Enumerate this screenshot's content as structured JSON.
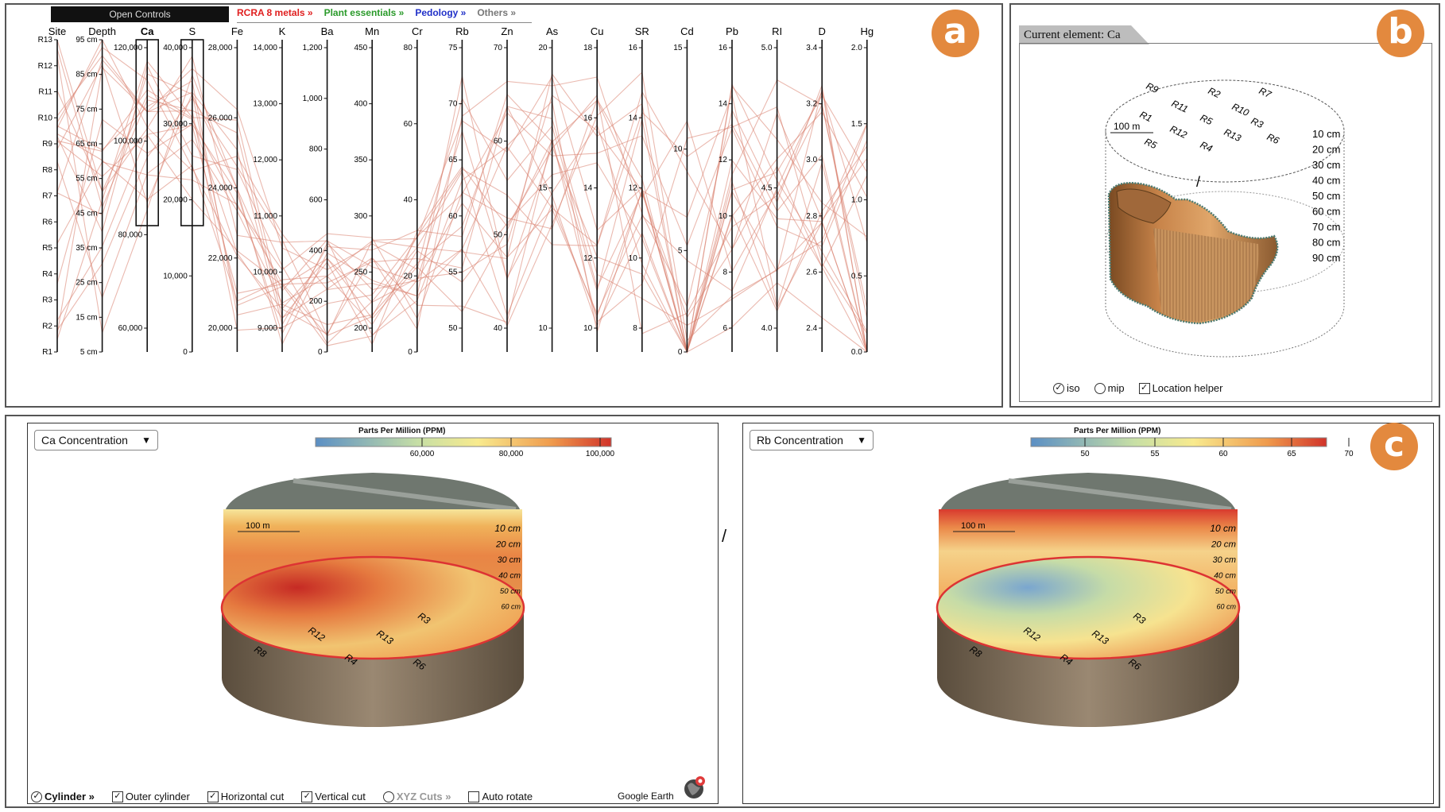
{
  "panel_a": {
    "badge": "a",
    "open_controls": "Open Controls",
    "categories": [
      {
        "label": "RCRA 8 metals »",
        "color": "#e02020"
      },
      {
        "label": "Plant essentials »",
        "color": "#2a9a2a"
      },
      {
        "label": "Pedology »",
        "color": "#2030c8"
      },
      {
        "label": "Others »",
        "color": "#777777"
      }
    ],
    "axes": [
      {
        "name": "Site",
        "ticks": [
          "R13",
          "R12",
          "R11",
          "R10",
          "R9",
          "R8",
          "R7",
          "R6",
          "R5",
          "R4",
          "R3",
          "R2",
          "R1"
        ]
      },
      {
        "name": "Depth",
        "ticks": [
          "95 cm",
          "85 cm",
          "75 cm",
          "65 cm",
          "55 cm",
          "45 cm",
          "35 cm",
          "25 cm",
          "15 cm",
          "5 cm"
        ]
      },
      {
        "name": "Ca",
        "ticks": [
          "120,000",
          "100,000",
          "80,000",
          "60,000"
        ],
        "bold": true
      },
      {
        "name": "S",
        "ticks": [
          "40,000",
          "30,000",
          "20,000",
          "10,000",
          "0"
        ]
      },
      {
        "name": "Fe",
        "ticks": [
          "28,000",
          "26,000",
          "24,000",
          "22,000",
          "20,000"
        ]
      },
      {
        "name": "K",
        "ticks": [
          "14,000",
          "13,000",
          "12,000",
          "11,000",
          "10,000",
          "9,000"
        ]
      },
      {
        "name": "Ba",
        "ticks": [
          "1,200",
          "1,000",
          "800",
          "600",
          "400",
          "200",
          "0"
        ]
      },
      {
        "name": "Mn",
        "ticks": [
          "450",
          "400",
          "350",
          "300",
          "250",
          "200"
        ]
      },
      {
        "name": "Cr",
        "ticks": [
          "80",
          "60",
          "40",
          "20",
          "0"
        ]
      },
      {
        "name": "Rb",
        "ticks": [
          "75",
          "70",
          "65",
          "60",
          "55",
          "50"
        ]
      },
      {
        "name": "Zn",
        "ticks": [
          "70",
          "60",
          "50",
          "40"
        ]
      },
      {
        "name": "As",
        "ticks": [
          "20",
          "15",
          "10"
        ]
      },
      {
        "name": "Cu",
        "ticks": [
          "18",
          "16",
          "14",
          "12",
          "10"
        ]
      },
      {
        "name": "SR",
        "ticks": [
          "16",
          "14",
          "12",
          "10",
          "8"
        ]
      },
      {
        "name": "Cd",
        "ticks": [
          "15",
          "10",
          "5",
          "0"
        ]
      },
      {
        "name": "Pb",
        "ticks": [
          "16",
          "14",
          "12",
          "10",
          "8",
          "6"
        ]
      },
      {
        "name": "RI",
        "ticks": [
          "5.0",
          "4.5",
          "4.0"
        ]
      },
      {
        "name": "D",
        "ticks": [
          "3.4",
          "3.2",
          "3.0",
          "2.8",
          "2.6",
          "2.4"
        ]
      },
      {
        "name": "Hg",
        "ticks": [
          "2.0",
          "1.5",
          "1.0",
          "0.5",
          "0.0"
        ]
      }
    ],
    "line_color": "#d8806e"
  },
  "panel_b": {
    "badge": "b",
    "current_element_label": "Current element:",
    "current_element": "Ca",
    "site_labels": [
      "R9",
      "R2",
      "R7",
      "R11",
      "R10",
      "R1",
      "R5",
      "R3",
      "R12",
      "R13",
      "R6",
      "R5",
      "R4"
    ],
    "scale_label": "100 m",
    "depth_labels": [
      "10 cm",
      "20 cm",
      "30 cm",
      "40 cm",
      "50 cm",
      "60 cm",
      "70 cm",
      "80 cm",
      "90 cm"
    ],
    "options": [
      {
        "type": "radio",
        "label": "iso",
        "checked": true
      },
      {
        "type": "radio",
        "label": "mip",
        "checked": false
      },
      {
        "type": "check",
        "label": "Location helper",
        "checked": true
      }
    ]
  },
  "panel_c": {
    "badge": "c",
    "left_map": {
      "select_value": "Ca Concentration",
      "legend_title": "Parts Per Million (PPM)",
      "legend_ticks": [
        "60,000",
        "80,000",
        "100,000"
      ],
      "scale_label": "100 m",
      "depth_labels": [
        "10 cm",
        "20 cm",
        "30 cm",
        "40 cm",
        "50 cm",
        "60 cm"
      ],
      "site_labels": [
        "R12",
        "R13",
        "R3",
        "R8",
        "R4",
        "R6"
      ]
    },
    "right_map": {
      "select_value": "Rb Concentration",
      "legend_title": "Parts Per Million (PPM)",
      "legend_ticks": [
        "50",
        "55",
        "60",
        "65",
        "70"
      ],
      "scale_label": "100 m",
      "depth_labels": [
        "10 cm",
        "20 cm",
        "30 cm",
        "40 cm",
        "50 cm",
        "60 cm"
      ],
      "site_labels": [
        "R12",
        "R13",
        "R3",
        "R8",
        "R4",
        "R6"
      ]
    },
    "bottom_options": [
      {
        "type": "radio",
        "label": "Cylinder »",
        "checked": true,
        "bold": true
      },
      {
        "type": "check",
        "label": "Outer cylinder",
        "checked": true
      },
      {
        "type": "check",
        "label": "Horizontal cut",
        "checked": true
      },
      {
        "type": "check",
        "label": "Vertical cut",
        "checked": true
      },
      {
        "type": "radio",
        "label": "XYZ Cuts »",
        "checked": false,
        "muted": true
      },
      {
        "type": "check",
        "label": "Auto rotate",
        "checked": false
      }
    ],
    "google_earth_label": "Google Earth"
  }
}
